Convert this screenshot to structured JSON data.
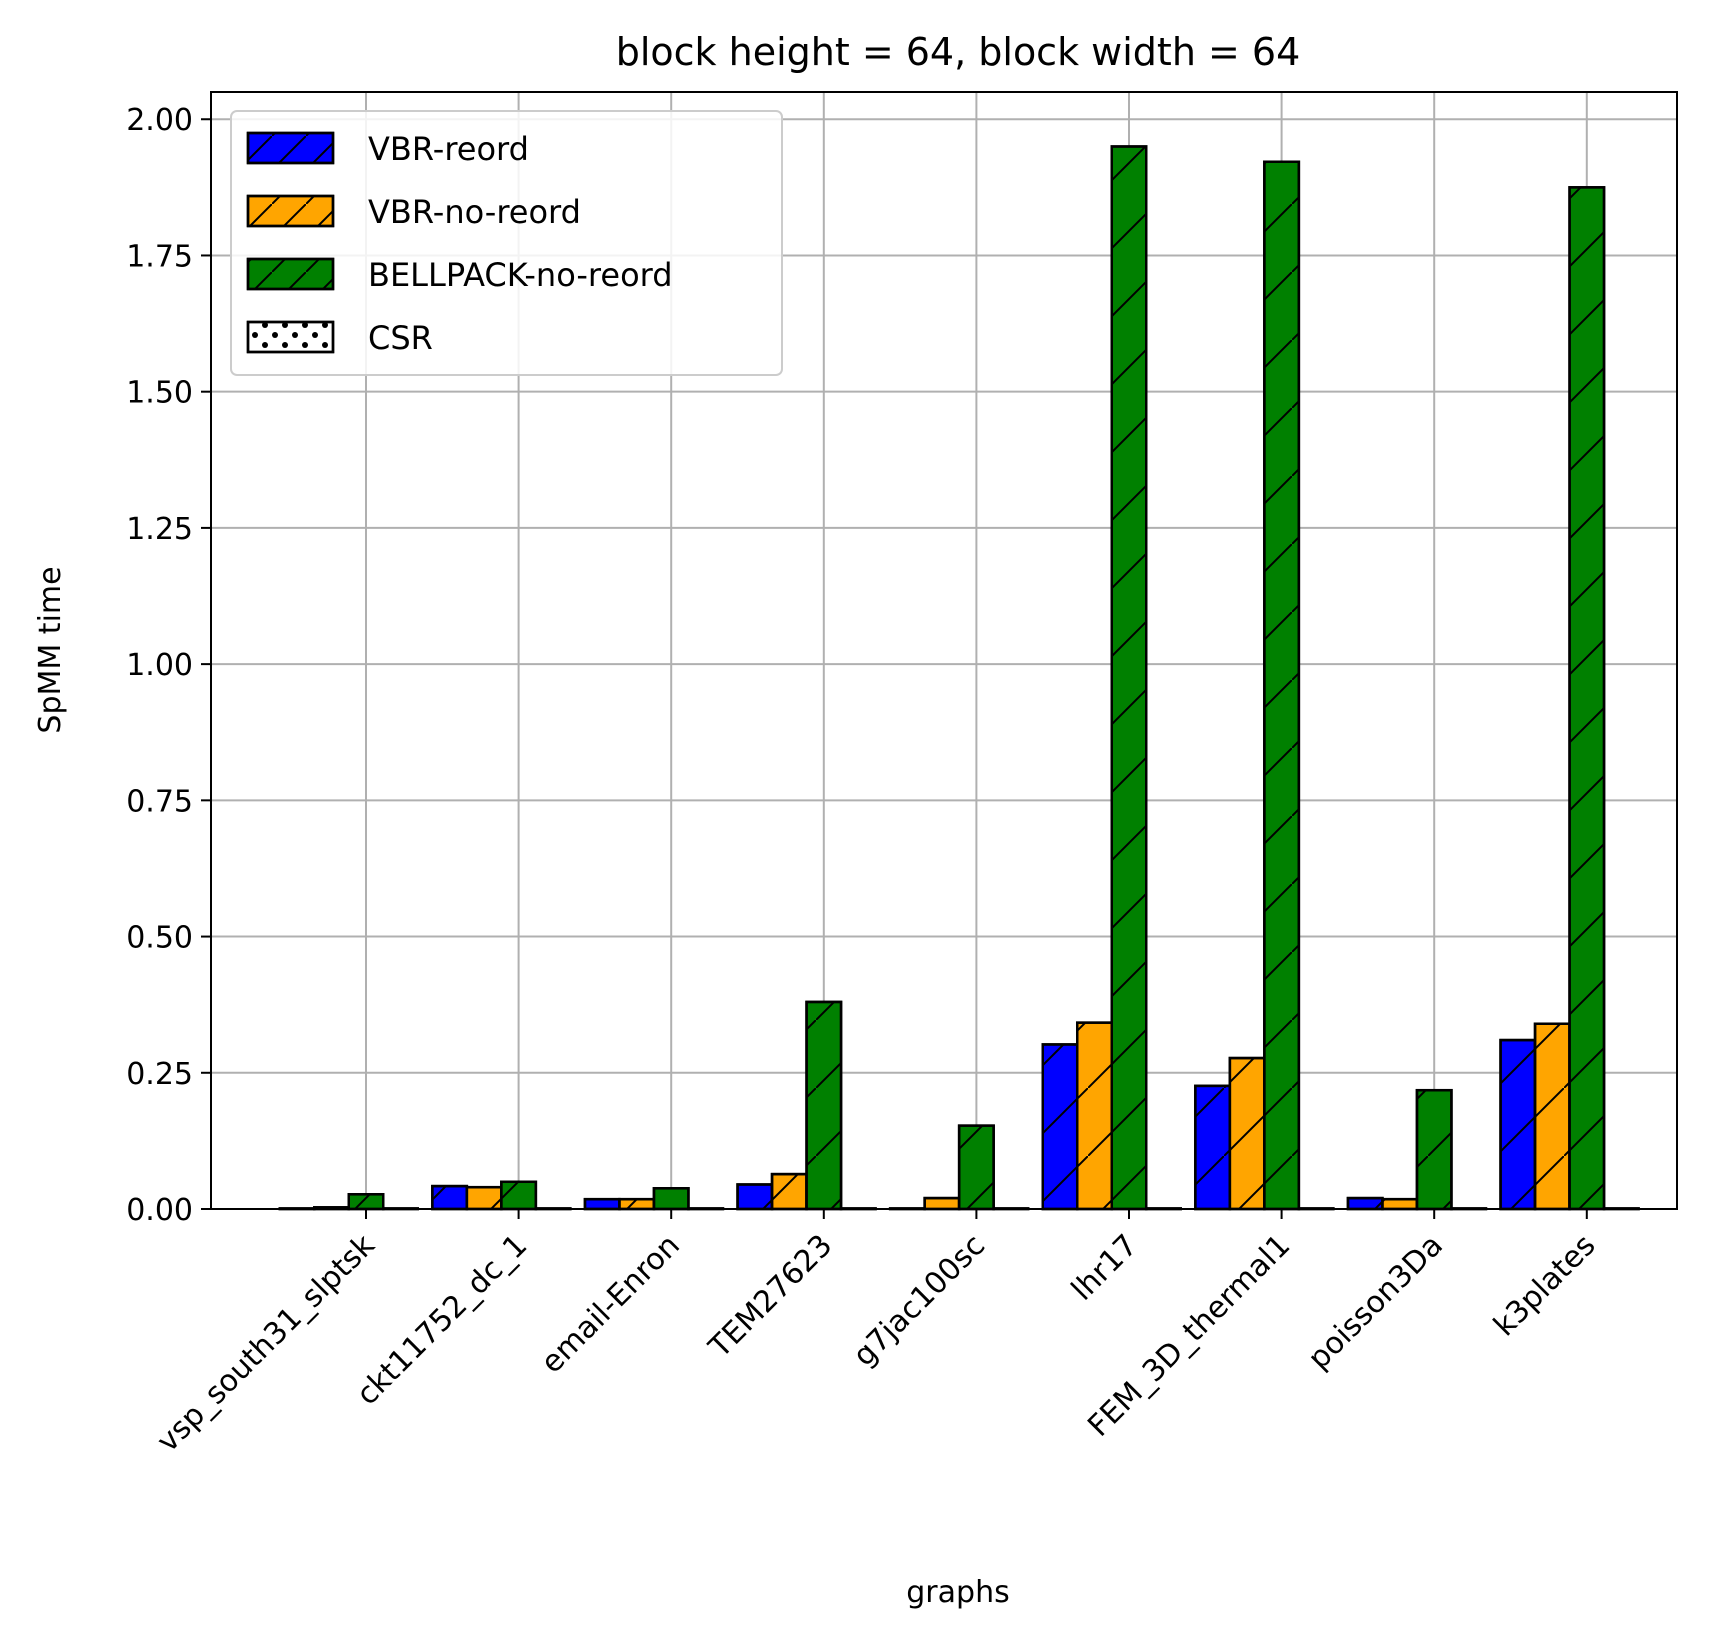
{
  "chart_data": {
    "type": "bar",
    "title": "block height = 64, block width = 64",
    "xlabel": "graphs",
    "ylabel": "SpMM time",
    "ylim": [
      0,
      2.05
    ],
    "yticks": [
      "0.00",
      "0.25",
      "0.50",
      "0.75",
      "1.00",
      "1.25",
      "1.50",
      "1.75",
      "2.00"
    ],
    "grid": true,
    "legend_position": "top-left",
    "categories": [
      "vsp_south31_slptsk",
      "ckt11752_dc_1",
      "email-Enron",
      "TEM27623",
      "g7jac100sc",
      "lhr17",
      "FEM_3D_thermal1",
      "poisson3Da",
      "k3plates"
    ],
    "series": [
      {
        "name": "VBR-reord",
        "color": "#0000ff",
        "pattern": "hatch-diagonal",
        "values": [
          0.001,
          0.042,
          0.018,
          0.045,
          0.001,
          0.302,
          0.226,
          0.02,
          0.31
        ]
      },
      {
        "name": "VBR-no-reord",
        "color": "#ffa500",
        "pattern": "hatch-diagonal",
        "values": [
          0.003,
          0.04,
          0.018,
          0.064,
          0.02,
          0.342,
          0.277,
          0.018,
          0.34
        ]
      },
      {
        "name": "BELLPACK-no-reord",
        "color": "#008000",
        "pattern": "hatch-diagonal",
        "values": [
          0.027,
          0.05,
          0.038,
          0.38,
          0.153,
          1.95,
          1.922,
          0.218,
          1.875
        ]
      },
      {
        "name": "CSR",
        "color": "#ffffff",
        "pattern": "dots",
        "values": [
          0.001,
          0.001,
          0.001,
          0.001,
          0.001,
          0.001,
          0.001,
          0.001,
          0.001
        ]
      }
    ]
  }
}
